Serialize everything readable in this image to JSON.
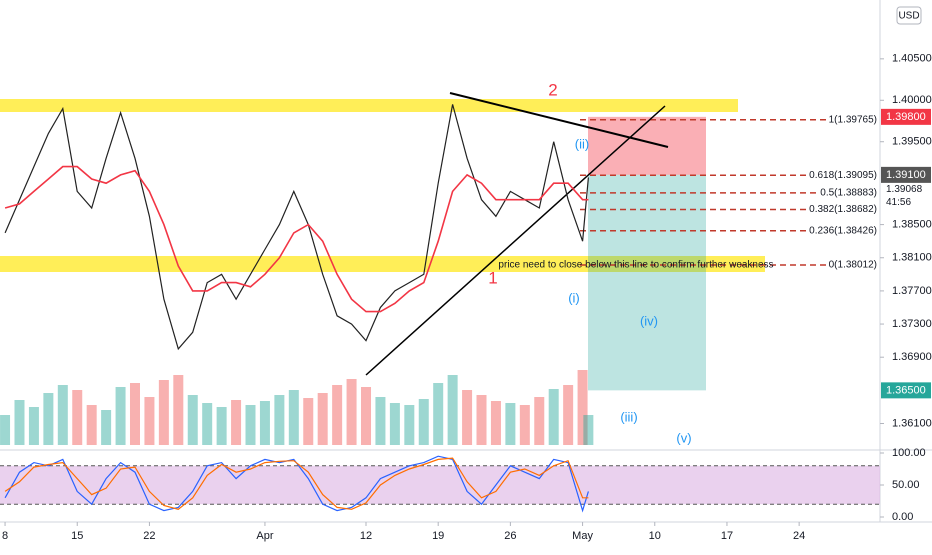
{
  "chart_data": {
    "type": "line",
    "currency": "USD",
    "x": [
      0,
      1,
      2,
      3,
      4,
      5,
      6,
      7,
      8,
      9,
      10,
      11,
      12,
      13,
      14,
      15,
      16,
      17,
      18,
      19,
      20,
      21,
      22,
      23,
      24,
      25,
      26,
      27,
      28,
      29,
      30,
      31,
      32,
      33,
      34,
      35,
      36,
      37,
      38,
      39,
      40,
      40.4
    ],
    "xlim": [
      -0.35,
      60.6
    ],
    "xticks": [
      {
        "value": 0,
        "label": "8"
      },
      {
        "value": 5,
        "label": "15"
      },
      {
        "value": 10,
        "label": "22"
      },
      {
        "value": 18,
        "label": "Apr"
      },
      {
        "value": 25,
        "label": "12"
      },
      {
        "value": 30,
        "label": "19"
      },
      {
        "value": 35,
        "label": "26"
      },
      {
        "value": 40,
        "label": "May"
      },
      {
        "value": 45,
        "label": "10"
      },
      {
        "value": 50,
        "label": "17"
      },
      {
        "value": 55,
        "label": "24"
      }
    ],
    "ylim": [
      1.3572,
      1.4121
    ],
    "yticks": [
      {
        "value": 1.405,
        "label": "1.40500"
      },
      {
        "value": 1.4,
        "label": "1.40000"
      },
      {
        "value": 1.395,
        "label": "1.39500"
      },
      {
        "value": 1.385,
        "label": "1.38500"
      },
      {
        "value": 1.381,
        "label": "1.38100"
      },
      {
        "value": 1.377,
        "label": "1.37700"
      },
      {
        "value": 1.373,
        "label": "1.37300"
      },
      {
        "value": 1.369,
        "label": "1.36900"
      },
      {
        "value": 1.361,
        "label": "1.36100"
      }
    ],
    "series": [
      {
        "color": "#222222",
        "values": [
          1.384,
          1.388,
          1.392,
          1.396,
          1.399,
          1.389,
          1.387,
          1.393,
          1.3985,
          1.393,
          1.386,
          1.376,
          1.37,
          1.372,
          1.378,
          1.379,
          1.376,
          1.379,
          1.382,
          1.385,
          1.389,
          1.385,
          1.379,
          1.374,
          1.373,
          1.371,
          1.375,
          1.377,
          1.378,
          1.379,
          1.39,
          1.3995,
          1.393,
          1.388,
          1.386,
          1.389,
          1.388,
          1.387,
          1.395,
          1.388,
          1.383,
          1.3907
        ]
      },
      {
        "color": "#f23645",
        "values": [
          1.387,
          1.3875,
          1.389,
          1.3905,
          1.392,
          1.392,
          1.3905,
          1.39,
          1.391,
          1.3915,
          1.389,
          1.385,
          1.38,
          1.377,
          1.377,
          1.378,
          1.378,
          1.3775,
          1.379,
          1.381,
          1.384,
          1.385,
          1.383,
          1.379,
          1.376,
          1.3745,
          1.3745,
          1.3755,
          1.377,
          1.378,
          1.383,
          1.389,
          1.391,
          1.39,
          1.388,
          1.388,
          1.388,
          1.388,
          1.39,
          1.39,
          1.388,
          1.388
        ]
      }
    ],
    "volume": {
      "up_color": "#26a69a",
      "down_color": "#ef5350",
      "values": [
        30,
        45,
        38,
        52,
        60,
        55,
        40,
        35,
        58,
        62,
        48,
        65,
        70,
        50,
        42,
        38,
        45,
        40,
        44,
        50,
        55,
        47,
        52,
        60,
        66,
        58,
        48,
        42,
        40,
        46,
        62,
        70,
        55,
        50,
        44,
        42,
        40,
        48,
        56,
        60,
        75,
        30
      ]
    },
    "stoch": {
      "ylim": [
        0,
        100
      ],
      "yticks": [
        {
          "value": 100,
          "label": "100.00"
        },
        {
          "value": 50,
          "label": "50.00"
        },
        {
          "value": 0,
          "label": "0.00"
        }
      ],
      "bands": [
        20,
        80
      ],
      "band_color": "#e1bee7",
      "series": [
        {
          "color": "#2962ff",
          "values": [
            30,
            70,
            85,
            80,
            90,
            40,
            20,
            60,
            85,
            70,
            20,
            10,
            15,
            40,
            80,
            85,
            60,
            80,
            90,
            85,
            90,
            60,
            20,
            10,
            15,
            30,
            60,
            70,
            80,
            85,
            95,
            90,
            40,
            20,
            50,
            80,
            70,
            60,
            90,
            85,
            10,
            40
          ]
        },
        {
          "color": "#ff6d00",
          "values": [
            40,
            55,
            78,
            82,
            85,
            60,
            35,
            45,
            75,
            78,
            40,
            18,
            12,
            30,
            65,
            82,
            70,
            75,
            85,
            87,
            88,
            70,
            35,
            15,
            12,
            22,
            50,
            65,
            75,
            82,
            90,
            92,
            55,
            30,
            40,
            70,
            75,
            65,
            80,
            88,
            30,
            30
          ]
        }
      ]
    },
    "fib_levels": [
      {
        "value": 1.39765,
        "label": "1(1.39765)"
      },
      {
        "value": 1.39095,
        "label": "0.618(1.39095)"
      },
      {
        "value": 1.38883,
        "label": "0.5(1.38883)"
      },
      {
        "value": 1.38682,
        "label": "0.382(1.38682)"
      },
      {
        "value": 1.38426,
        "label": "0.236(1.38426)"
      },
      {
        "value": 1.38012,
        "label": "0(1.38012)"
      }
    ],
    "price_badges": [
      {
        "value": 1.398,
        "label": "1.39800",
        "color": "#f23645"
      },
      {
        "value": 1.391,
        "label": "1.39100",
        "color": "#555555"
      },
      {
        "value": 1.365,
        "label": "1.36500",
        "color": "#26a69a"
      }
    ],
    "last_price": {
      "value": 1.39068,
      "label": "1.39068"
    },
    "countdown": "41:56",
    "annotations": [
      "2",
      "1",
      "(ii)",
      "(i)",
      "(iv)",
      "(iii)",
      "(v)",
      "price need to close below this line to confirm further weakness"
    ]
  }
}
